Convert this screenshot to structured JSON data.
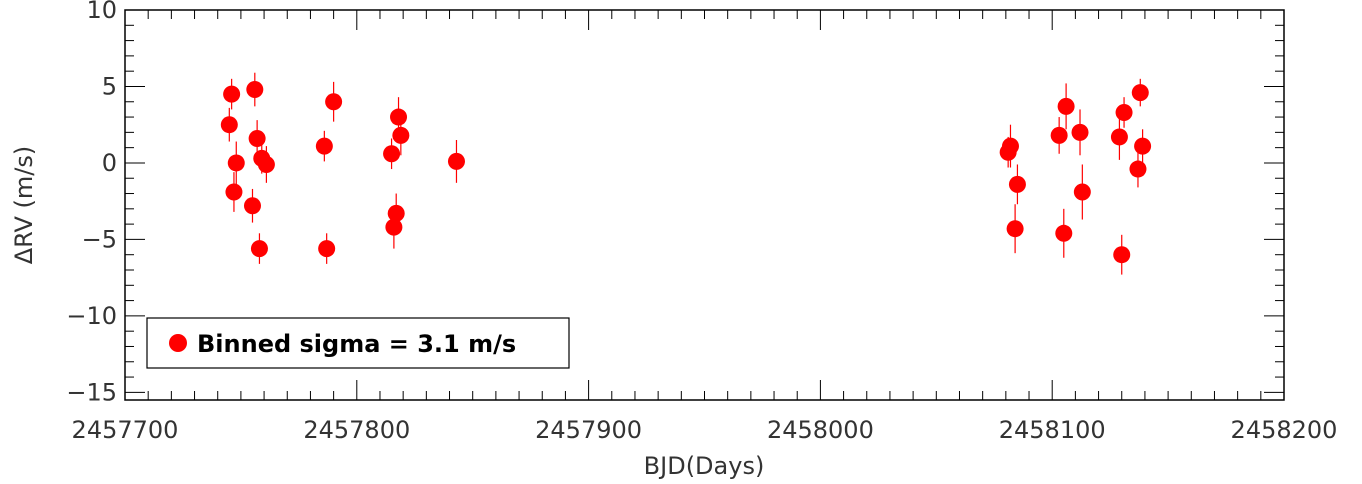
{
  "chart_data": {
    "type": "scatter",
    "title": "",
    "xlabel": "BJD(Days)",
    "ylabel": "ΔRV (m/s)",
    "xlim": [
      2457700,
      2458200
    ],
    "ylim": [
      -15.5,
      10.0
    ],
    "x_ticks": [
      2457700,
      2457800,
      2457900,
      2458000,
      2458100,
      2458200
    ],
    "x_tick_labels": [
      "2457700",
      "2457800",
      "2457900",
      "2458000",
      "2458100",
      "2458200"
    ],
    "y_ticks": [
      10,
      5,
      0,
      -5,
      -10,
      -15
    ],
    "y_tick_labels": [
      "10",
      "5",
      "0",
      "−5",
      "−10",
      "−15"
    ],
    "grid": false,
    "legend": {
      "placement": "bottom-left",
      "label": "Binned sigma = 3.1 m/s"
    },
    "marker_color": "#ff0000",
    "series": [
      {
        "name": "Binned sigma = 3.1 m/s",
        "points": [
          {
            "x": 2457745,
            "y": 2.5,
            "err": 1.1
          },
          {
            "x": 2457746,
            "y": 4.5,
            "err": 1.0
          },
          {
            "x": 2457747,
            "y": -1.9,
            "err": 1.3
          },
          {
            "x": 2457748,
            "y": 0.0,
            "err": 1.4
          },
          {
            "x": 2457755,
            "y": -2.8,
            "err": 1.1
          },
          {
            "x": 2457756,
            "y": 4.8,
            "err": 1.1
          },
          {
            "x": 2457757,
            "y": 1.6,
            "err": 1.2
          },
          {
            "x": 2457758,
            "y": -5.6,
            "err": 1.0
          },
          {
            "x": 2457759,
            "y": 0.3,
            "err": 1.0
          },
          {
            "x": 2457761,
            "y": -0.1,
            "err": 1.2
          },
          {
            "x": 2457786,
            "y": 1.1,
            "err": 1.0
          },
          {
            "x": 2457787,
            "y": -5.6,
            "err": 1.0
          },
          {
            "x": 2457790,
            "y": 4.0,
            "err": 1.3
          },
          {
            "x": 2457815,
            "y": 0.6,
            "err": 1.0
          },
          {
            "x": 2457816,
            "y": -4.2,
            "err": 1.4
          },
          {
            "x": 2457817,
            "y": -3.3,
            "err": 1.3
          },
          {
            "x": 2457818,
            "y": 3.0,
            "err": 1.3
          },
          {
            "x": 2457819,
            "y": 1.8,
            "err": 1.3
          },
          {
            "x": 2457843,
            "y": 0.1,
            "err": 1.4
          },
          {
            "x": 2458081,
            "y": 0.7,
            "err": 1.0
          },
          {
            "x": 2458082,
            "y": 1.1,
            "err": 1.4
          },
          {
            "x": 2458084,
            "y": -4.3,
            "err": 1.6
          },
          {
            "x": 2458085,
            "y": -1.4,
            "err": 1.3
          },
          {
            "x": 2458103,
            "y": 1.8,
            "err": 1.2
          },
          {
            "x": 2458105,
            "y": -4.6,
            "err": 1.6
          },
          {
            "x": 2458106,
            "y": 3.7,
            "err": 1.5
          },
          {
            "x": 2458112,
            "y": 2.0,
            "err": 1.5
          },
          {
            "x": 2458113,
            "y": -1.9,
            "err": 1.8
          },
          {
            "x": 2458129,
            "y": 1.7,
            "err": 1.5
          },
          {
            "x": 2458130,
            "y": -6.0,
            "err": 1.3
          },
          {
            "x": 2458131,
            "y": 3.3,
            "err": 1.0
          },
          {
            "x": 2458137,
            "y": -0.4,
            "err": 1.2
          },
          {
            "x": 2458138,
            "y": 4.6,
            "err": 0.9
          },
          {
            "x": 2458139,
            "y": 1.1,
            "err": 1.1
          }
        ]
      }
    ]
  }
}
